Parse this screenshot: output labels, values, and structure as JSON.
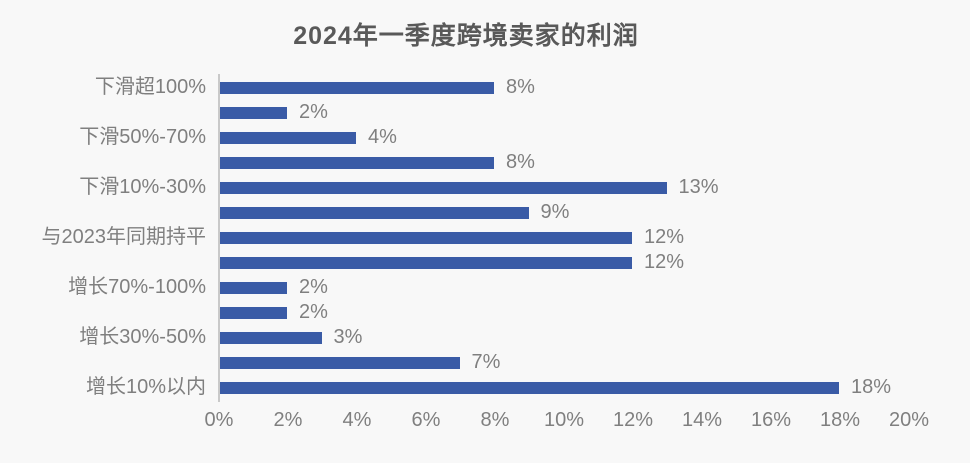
{
  "chart_data": {
    "type": "bar",
    "orientation": "horizontal",
    "title": "2024年一季度跨境卖家的利润",
    "xlabel": "",
    "ylabel": "",
    "xlim": [
      0,
      20
    ],
    "grid": false,
    "legend": "none",
    "x_axis_ticks": [
      "0%",
      "2%",
      "4%",
      "6%",
      "8%",
      "10%",
      "12%",
      "14%",
      "16%",
      "18%",
      "20%"
    ],
    "bars": [
      {
        "category": "下滑超100%",
        "value": 8,
        "value_label": "8%"
      },
      {
        "category": "",
        "value": 2,
        "value_label": "2%"
      },
      {
        "category": "下滑50%-70%",
        "value": 4,
        "value_label": "4%"
      },
      {
        "category": "",
        "value": 8,
        "value_label": "8%"
      },
      {
        "category": "下滑10%-30%",
        "value": 13,
        "value_label": "13%"
      },
      {
        "category": "",
        "value": 9,
        "value_label": "9%"
      },
      {
        "category": "与2023年同期持平",
        "value": 12,
        "value_label": "12%"
      },
      {
        "category": "",
        "value": 12,
        "value_label": "12%"
      },
      {
        "category": "增长70%-100%",
        "value": 2,
        "value_label": "2%"
      },
      {
        "category": "",
        "value": 2,
        "value_label": "2%"
      },
      {
        "category": "增长30%-50%",
        "value": 3,
        "value_label": "3%"
      },
      {
        "category": "",
        "value": 7,
        "value_label": "7%"
      },
      {
        "category": "增长10%以内",
        "value": 18,
        "value_label": "18%"
      }
    ],
    "colors": {
      "bar": "#3a5ba6",
      "label_text": "#7f7f7f",
      "title_text": "#595959",
      "axis_line": "#c9c9c9",
      "background": "#f8f8f8"
    }
  }
}
